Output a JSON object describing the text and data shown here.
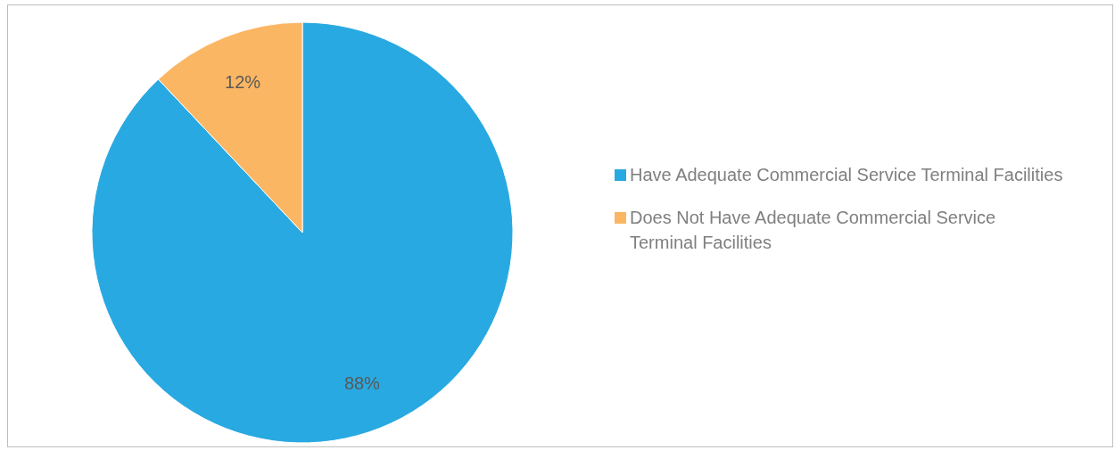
{
  "chart_data": {
    "type": "pie",
    "categories": [
      "Have Adequate Commercial Service Terminal Facilities",
      "Does Not Have Adequate Commercial Service Terminal Facilities"
    ],
    "values": [
      88,
      12
    ],
    "colors": [
      "#29a9e1",
      "#fbb663"
    ],
    "value_labels": [
      "88%",
      "12%"
    ],
    "legend": "right"
  }
}
